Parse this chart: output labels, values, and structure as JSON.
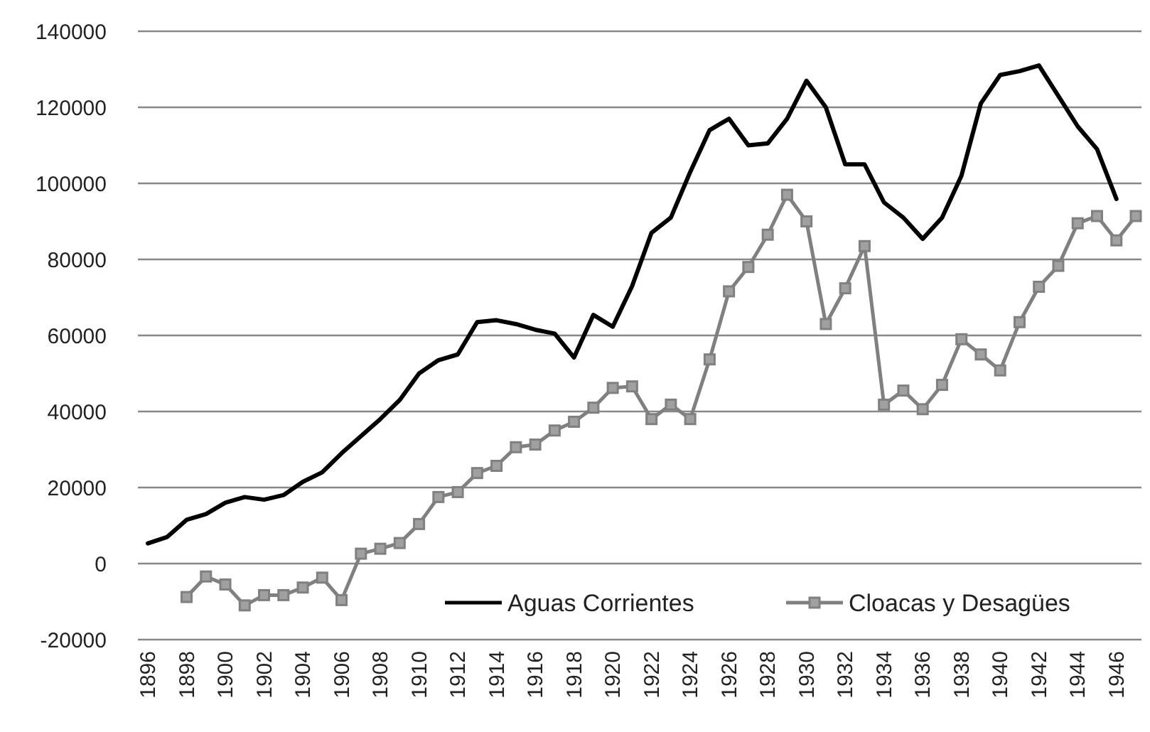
{
  "chart_data": {
    "type": "line",
    "categories": [
      "1896",
      null,
      "1898",
      null,
      "1900",
      null,
      "1902",
      null,
      "1904",
      null,
      "1906",
      null,
      "1908",
      null,
      "1910",
      null,
      "1912",
      null,
      "1914",
      null,
      "1916",
      null,
      "1918",
      null,
      "1920",
      null,
      "1922",
      null,
      "1924",
      null,
      "1926",
      null,
      "1928",
      null,
      "1930",
      null,
      "1932",
      null,
      "1934",
      null,
      "1936",
      null,
      "1938",
      null,
      "1940",
      null,
      "1942",
      null,
      "1944",
      null,
      "1946",
      null
    ],
    "series": [
      {
        "name": "Aguas Corrientes",
        "color": "#000000",
        "marker": "none",
        "values": [
          5300,
          7000,
          11500,
          13000,
          16000,
          17500,
          16800,
          18000,
          21500,
          24000,
          29000,
          33500,
          38000,
          43000,
          50000,
          53500,
          55000,
          63500,
          64000,
          63000,
          61500,
          60500,
          54200,
          65400,
          62300,
          73000,
          87000,
          91000,
          103000,
          114000,
          117000,
          110000,
          110500,
          117000,
          127000,
          120000,
          105000,
          105000,
          95000,
          91000,
          85400,
          91000,
          102000,
          121000,
          128500,
          129500,
          131000,
          123000,
          115000,
          109000,
          95900,
          null
        ]
      },
      {
        "name": "Cloacas y Desagües",
        "color": "#808080",
        "marker": "square",
        "values": [
          null,
          null,
          -8800,
          -3400,
          -5500,
          -11000,
          -8300,
          -8300,
          -6300,
          -3700,
          -9600,
          2600,
          3900,
          5400,
          10400,
          17500,
          18800,
          23800,
          25700,
          30600,
          31300,
          35000,
          37300,
          41000,
          46200,
          46600,
          38000,
          41800,
          38000,
          53700,
          71600,
          78000,
          86500,
          97000,
          90000,
          63000,
          72400,
          83500,
          41800,
          45500,
          40600,
          47000,
          59000,
          55000,
          50800,
          63500,
          72800,
          78300,
          89500,
          91400,
          85000,
          91400
        ]
      }
    ],
    "ylim": [
      -20000,
      140000
    ],
    "yticks": [
      -20000,
      0,
      20000,
      40000,
      60000,
      80000,
      100000,
      120000,
      140000
    ],
    "grid": "y",
    "legend": "bottom right"
  }
}
